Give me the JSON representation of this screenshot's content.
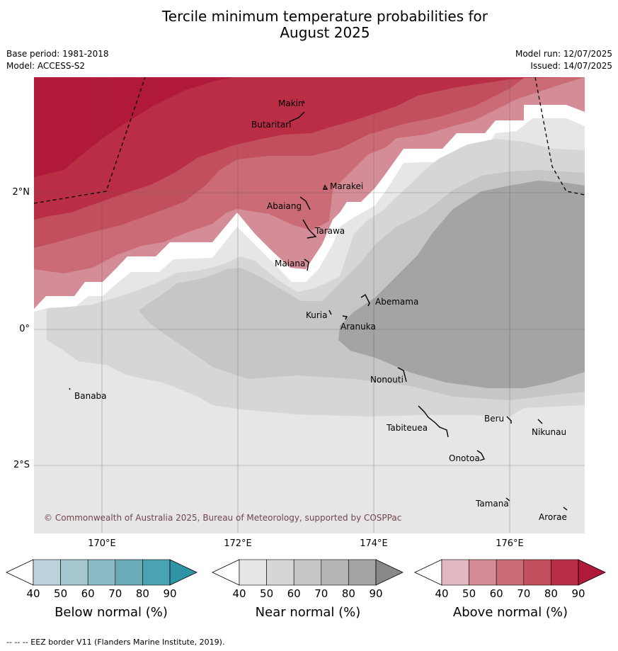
{
  "title_line1": "Tercile minimum temperature probabilities for",
  "title_line2": "August 2025",
  "base_period": "Base period: 1981-2018",
  "model": "Model: ACCESS-S2",
  "model_run": "Model run: 12/07/2025",
  "issued": "Issued: 14/07/2025",
  "copyright": "© Commonwealth of Australia 2025, Bureau of Meteorology, supported by COSPPac",
  "lat_labels": [
    "2°N",
    "0°",
    "2°S"
  ],
  "lon_labels": [
    "170°E",
    "172°E",
    "174°E",
    "176°E"
  ],
  "places": [
    "Makin",
    "Butaritari",
    "Marakei",
    "Abaiang",
    "Tarawa",
    "Maiana",
    "Abemama",
    "Kuria",
    "Aranuka",
    "Banaba",
    "Nonouti",
    "Beru",
    "Tabiteuea",
    "Nikunau",
    "Onotoa",
    "Tamana",
    "Arorae"
  ],
  "colorbars": [
    {
      "title": "Below normal (%)",
      "ticks": [
        "40",
        "50",
        "60",
        "70",
        "80",
        "90"
      ],
      "colors": [
        "#bcd3db",
        "#a6c6cf",
        "#8bb9c4",
        "#6baab7",
        "#4aa3b3",
        "#2f93a6"
      ]
    },
    {
      "title": "Near normal (%)",
      "ticks": [
        "40",
        "50",
        "60",
        "70",
        "80",
        "90"
      ],
      "colors": [
        "#e6e6e6",
        "#d6d6d6",
        "#c6c6c6",
        "#b5b5b5",
        "#a4a4a4",
        "#888888"
      ]
    },
    {
      "title": "Above normal (%)",
      "ticks": [
        "40",
        "50",
        "60",
        "70",
        "80",
        "90"
      ],
      "colors": [
        "#e3b8c0",
        "#d48d97",
        "#ca6b76",
        "#c2505c",
        "#b92d45",
        "#b0193a"
      ]
    }
  ],
  "footer": "--  --  -- EEZ border V11 (Flanders Marine Institute, 2019)."
}
